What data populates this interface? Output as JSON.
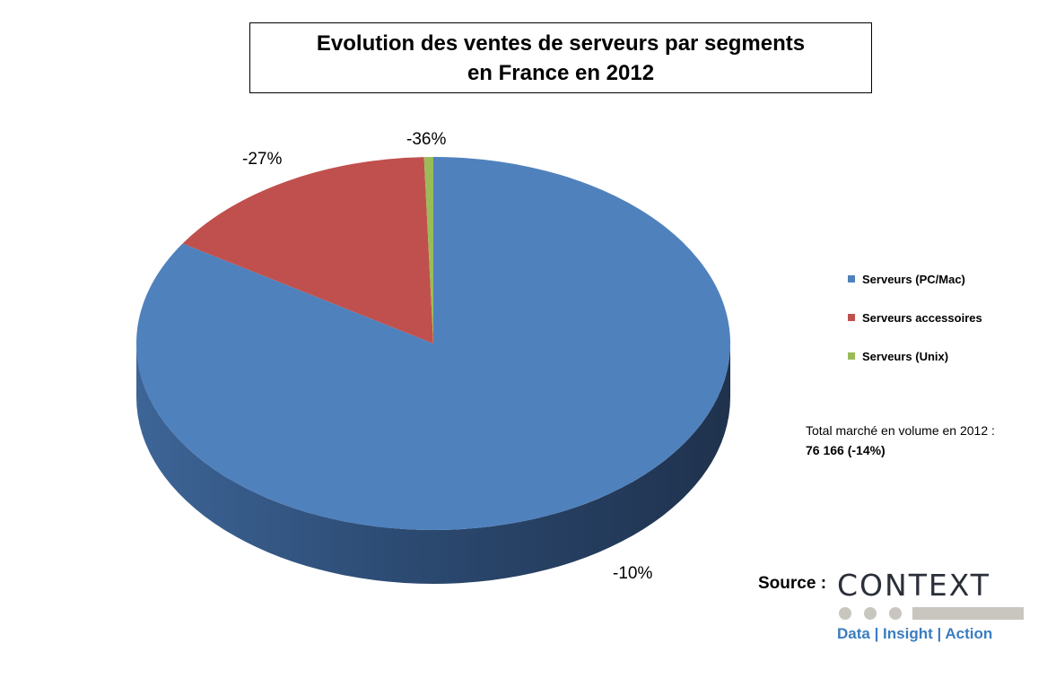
{
  "chart_data": {
    "type": "pie",
    "title_line1": "Evolution des ventes de serveurs par segments",
    "title_line2": "en France en 2012",
    "series": [
      {
        "name": "Serveurs (PC/Mac)",
        "value": 84.0,
        "change_label": "-10%",
        "color": "#4f81bd"
      },
      {
        "name": "Serveurs accessoires",
        "value": 15.5,
        "change_label": "-27%",
        "color": "#c0504d"
      },
      {
        "name": "Serveurs (Unix)",
        "value": 0.5,
        "change_label": "-36%",
        "color": "#9bbb59"
      }
    ],
    "legend_position": "right"
  },
  "note": {
    "total_label": "Total marché en volume en 2012 :",
    "total_value": "76 166 (-14%)"
  },
  "source": {
    "label": "Source :",
    "logo_text": "CONTEXT",
    "logo_tagline": "Data | Insight | Action"
  }
}
